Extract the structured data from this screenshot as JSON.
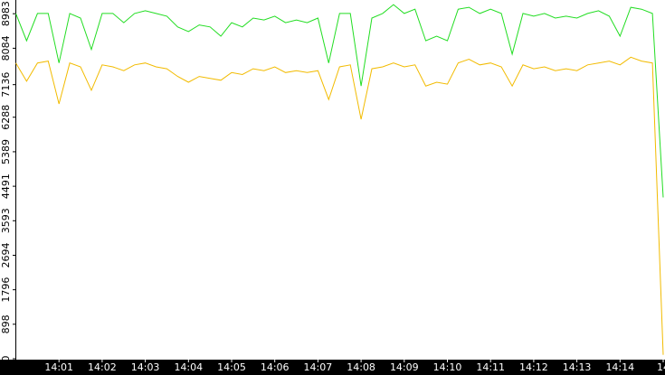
{
  "chart_data": {
    "type": "line",
    "x": [
      0,
      0.25,
      0.5,
      0.75,
      1,
      1.25,
      1.5,
      1.75,
      2,
      2.25,
      2.5,
      2.75,
      3,
      3.25,
      3.5,
      3.75,
      4,
      4.25,
      4.5,
      4.75,
      5,
      5.25,
      5.5,
      5.75,
      6,
      6.25,
      6.5,
      6.75,
      7,
      7.25,
      7.5,
      7.75,
      8,
      8.25,
      8.5,
      8.75,
      9,
      9.25,
      9.5,
      9.75,
      10,
      10.25,
      10.5,
      10.75,
      11,
      11.25,
      11.5,
      11.75,
      12,
      12.25,
      12.5,
      12.75,
      13,
      13.25,
      13.5,
      13.75,
      14,
      14.25,
      14.5,
      14.75,
      15
    ],
    "series": [
      {
        "color": "#22dd22",
        "values": [
          8990,
          8280,
          8990,
          8990,
          7700,
          8990,
          8870,
          8050,
          8990,
          8990,
          8750,
          8990,
          9060,
          8990,
          8920,
          8640,
          8520,
          8690,
          8640,
          8400,
          8750,
          8640,
          8870,
          8820,
          8920,
          8750,
          8820,
          8750,
          8870,
          7700,
          8990,
          8990,
          7100,
          8870,
          8990,
          9220,
          8990,
          9100,
          8280,
          8400,
          8280,
          9100,
          9150,
          8990,
          9100,
          8990,
          7930,
          8990,
          8920,
          8990,
          8870,
          8920,
          8870,
          8990,
          9060,
          8920,
          8400,
          9150,
          9100,
          8990,
          4200
        ]
      },
      {
        "color": "#f2bb00",
        "values": [
          7700,
          7225,
          7700,
          7750,
          6635,
          7700,
          7600,
          6990,
          7650,
          7600,
          7500,
          7650,
          7700,
          7600,
          7550,
          7350,
          7200,
          7350,
          7300,
          7250,
          7450,
          7400,
          7550,
          7500,
          7600,
          7450,
          7500,
          7450,
          7500,
          6750,
          7600,
          7650,
          6235,
          7550,
          7600,
          7700,
          7600,
          7650,
          7100,
          7200,
          7150,
          7700,
          7800,
          7650,
          7700,
          7600,
          7100,
          7650,
          7550,
          7600,
          7500,
          7550,
          7500,
          7650,
          7700,
          7750,
          7650,
          7850,
          7750,
          7700,
          100
        ]
      }
    ],
    "xlim": [
      0,
      15
    ],
    "xticks": [
      {
        "value": 1,
        "label": "14:01"
      },
      {
        "value": 2,
        "label": "14:02"
      },
      {
        "value": 3,
        "label": "14:03"
      },
      {
        "value": 4,
        "label": "14:04"
      },
      {
        "value": 5,
        "label": "14:05"
      },
      {
        "value": 6,
        "label": "14:06"
      },
      {
        "value": 7,
        "label": "14:07"
      },
      {
        "value": 8,
        "label": "14:08"
      },
      {
        "value": 9,
        "label": "14:09"
      },
      {
        "value": 10,
        "label": "14:10"
      },
      {
        "value": 11,
        "label": "14:11"
      },
      {
        "value": 12,
        "label": "14:12"
      },
      {
        "value": 13,
        "label": "14:13"
      },
      {
        "value": 14,
        "label": "14:14"
      },
      {
        "value": 15,
        "label": "14"
      }
    ],
    "ylim": [
      0,
      9340
    ],
    "yticks": [
      0,
      898,
      1796,
      2694,
      3593,
      4491,
      5389,
      6288,
      7136,
      8084,
      8983
    ]
  }
}
